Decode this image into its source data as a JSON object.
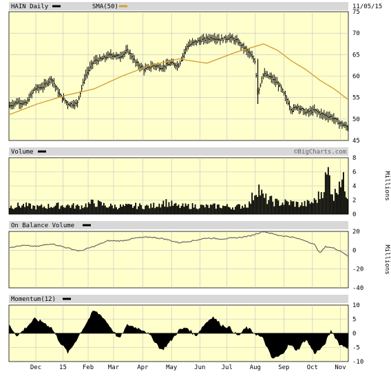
{
  "header": {
    "ticker_label": "HAIN Daily",
    "sma_label": "SMA(50)",
    "date": "11/05/15",
    "watermark": "©BigCharts.com"
  },
  "colors": {
    "background": "#ffffff",
    "panel_fill": "#ffffcc",
    "title_bar": "#d8d8d8",
    "grid": "#bfbfbf",
    "price": "#000000",
    "sma": "#d4a034",
    "obv": "#666666",
    "volume": "#000000",
    "momentum": "#000000"
  },
  "x_axis": {
    "months": [
      {
        "label": "Dec",
        "t": 0.095
      },
      {
        "label": "15",
        "t": 0.191
      },
      {
        "label": "Feb",
        "t": 0.28
      },
      {
        "label": "Mar",
        "t": 0.37
      },
      {
        "label": "Apr",
        "t": 0.473
      },
      {
        "label": "May",
        "t": 0.575
      },
      {
        "label": "Jun",
        "t": 0.675
      },
      {
        "label": "Jul",
        "t": 0.771
      },
      {
        "label": "Aug",
        "t": 0.871
      },
      {
        "label": "Sep",
        "t": 0.972
      },
      {
        "label": "Oct",
        "t": 1.073
      },
      {
        "label": "Nov",
        "t": 1.172
      }
    ]
  },
  "chart_data": [
    {
      "type": "line",
      "panel": "price",
      "series": [
        {
          "name": "HAIN Daily",
          "style": "ohlc",
          "x": [
            0.0,
            0.03,
            0.06,
            0.09,
            0.12,
            0.15,
            0.18,
            0.21,
            0.24,
            0.27,
            0.3,
            0.33,
            0.36,
            0.39,
            0.42,
            0.45,
            0.48,
            0.51,
            0.54,
            0.57,
            0.6,
            0.63,
            0.66,
            0.69,
            0.72,
            0.75,
            0.78,
            0.81,
            0.84,
            0.87,
            0.88,
            0.9,
            0.93,
            0.96,
            0.99,
            1.0,
            1.02,
            1.05,
            1.08,
            1.11,
            1.14,
            1.17,
            1.2
          ],
          "values": [
            53.0,
            54.0,
            53.5,
            57.0,
            57.5,
            59.5,
            55.5,
            53.5,
            53.5,
            60.0,
            63.5,
            64.0,
            65.0,
            64.5,
            66.0,
            63.0,
            61.5,
            62.5,
            62.0,
            63.0,
            62.5,
            67.0,
            68.0,
            68.5,
            69.0,
            68.5,
            69.0,
            68.0,
            66.0,
            63.5,
            56.0,
            60.5,
            59.5,
            57.5,
            53.5,
            52.0,
            53.0,
            51.5,
            52.0,
            51.0,
            50.5,
            49.0,
            48.0
          ]
        },
        {
          "name": "SMA(50)",
          "x": [
            0.0,
            0.1,
            0.2,
            0.3,
            0.4,
            0.5,
            0.6,
            0.7,
            0.8,
            0.9,
            0.95,
            1.0,
            1.05,
            1.1,
            1.15,
            1.2
          ],
          "values": [
            51.0,
            53.5,
            55.5,
            57.0,
            60.0,
            62.5,
            64.0,
            63.0,
            65.5,
            67.5,
            66.0,
            63.5,
            61.5,
            59.0,
            57.0,
            54.5
          ]
        }
      ],
      "ylim": [
        45,
        75
      ],
      "yticks": [
        45,
        50,
        55,
        60,
        65,
        70,
        75
      ]
    },
    {
      "type": "bar",
      "panel": "volume",
      "title": "Volume",
      "ylabel": "Millions",
      "series": [
        {
          "name": "Volume",
          "x": [
            0.0,
            0.05,
            0.1,
            0.15,
            0.2,
            0.25,
            0.3,
            0.35,
            0.4,
            0.45,
            0.5,
            0.55,
            0.6,
            0.65,
            0.7,
            0.75,
            0.8,
            0.85,
            0.88,
            0.9,
            0.95,
            1.0,
            1.03,
            1.05,
            1.08,
            1.1,
            1.13,
            1.15,
            1.17,
            1.2
          ],
          "values": [
            1.2,
            1.4,
            1.1,
            1.3,
            1.4,
            1.2,
            1.8,
            1.3,
            1.2,
            1.3,
            1.2,
            1.9,
            1.2,
            1.3,
            1.2,
            1.3,
            1.1,
            1.6,
            4.5,
            2.5,
            1.8,
            1.8,
            1.5,
            1.6,
            2.0,
            3.0,
            6.5,
            2.5,
            6.2,
            3.0
          ]
        }
      ],
      "ylim": [
        0,
        8
      ],
      "yticks": [
        0,
        2,
        4,
        6,
        8
      ]
    },
    {
      "type": "line",
      "panel": "obv",
      "title": "On Balance Volume",
      "ylabel": "Millions",
      "series": [
        {
          "name": "On Balance Volume",
          "x": [
            0.0,
            0.05,
            0.1,
            0.15,
            0.2,
            0.25,
            0.3,
            0.35,
            0.4,
            0.45,
            0.5,
            0.55,
            0.6,
            0.65,
            0.7,
            0.75,
            0.8,
            0.85,
            0.9,
            0.95,
            1.0,
            1.05,
            1.08,
            1.1,
            1.12,
            1.15,
            1.18,
            1.2
          ],
          "values": [
            3,
            5,
            4,
            7,
            3,
            -1,
            4,
            10,
            10,
            13,
            14,
            12,
            8,
            10,
            13,
            12,
            13,
            15,
            20,
            16,
            14,
            10,
            6,
            -3,
            4,
            2,
            -2,
            -7
          ]
        }
      ],
      "ylim": [
        -40,
        20
      ],
      "yticks": [
        -40,
        -20,
        0,
        20
      ]
    },
    {
      "type": "area",
      "panel": "momentum",
      "title": "Momentum(12)",
      "series": [
        {
          "name": "Momentum(12)",
          "x": [
            0.0,
            0.03,
            0.06,
            0.09,
            0.12,
            0.15,
            0.18,
            0.21,
            0.24,
            0.27,
            0.3,
            0.33,
            0.36,
            0.39,
            0.42,
            0.45,
            0.48,
            0.51,
            0.54,
            0.57,
            0.6,
            0.63,
            0.66,
            0.69,
            0.72,
            0.75,
            0.78,
            0.81,
            0.84,
            0.87,
            0.9,
            0.93,
            0.96,
            0.99,
            1.02,
            1.05,
            1.08,
            1.11,
            1.14,
            1.17,
            1.2
          ],
          "values": [
            3,
            -1,
            2,
            5,
            4,
            2,
            -3,
            -7,
            -2,
            3,
            8,
            6,
            2,
            -2,
            3,
            2,
            1,
            -2,
            -6,
            -3,
            1,
            2,
            -1,
            3,
            6,
            3,
            2,
            -1,
            2,
            0,
            -2,
            -9,
            -8,
            -4,
            -6,
            -2,
            -7,
            -5,
            1,
            -4,
            -5
          ]
        }
      ],
      "ylim": [
        -10,
        10
      ],
      "yticks": [
        -10,
        -5,
        0,
        5,
        10
      ]
    }
  ]
}
